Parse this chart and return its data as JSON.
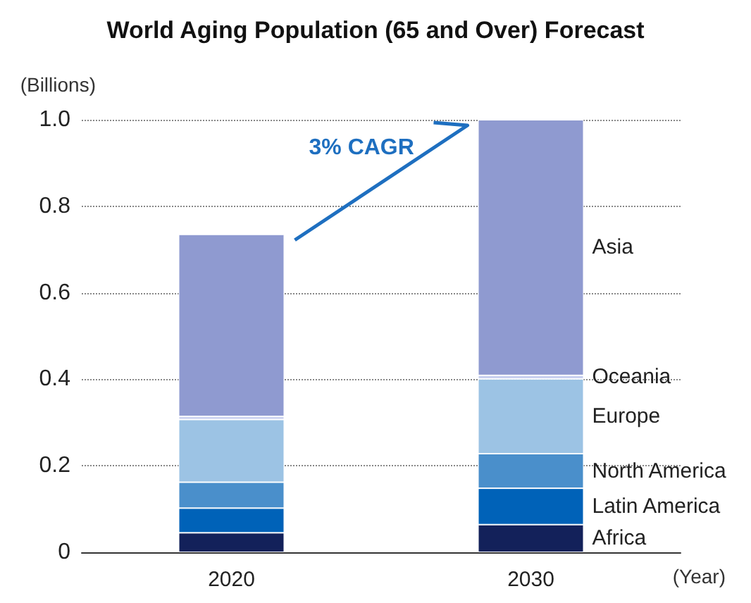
{
  "chart_data": {
    "type": "bar",
    "title": "World Aging Population (65 and Over) Forecast",
    "ylabel": "(Billions)",
    "xlabel": "(Year)",
    "annotations": [
      "3% CAGR"
    ],
    "categories": [
      "2020",
      "2030"
    ],
    "stacked": true,
    "legend": false,
    "grid": "y",
    "ylim": [
      0,
      1.0
    ],
    "yticks": [
      0,
      0.2,
      0.4,
      0.6,
      0.8,
      {
        "value": 1,
        "label": "1.0"
      }
    ],
    "series": [
      {
        "name": "Africa",
        "color": "#13215a",
        "values": [
          0.045,
          0.064
        ]
      },
      {
        "name": "Latin America",
        "color": "#0062b8",
        "values": [
          0.057,
          0.084
        ]
      },
      {
        "name": "North America",
        "color": "#4a8fcb",
        "values": [
          0.06,
          0.08
        ]
      },
      {
        "name": "Europe",
        "color": "#9cc3e4",
        "values": [
          0.145,
          0.173
        ]
      },
      {
        "name": "Oceania",
        "color": "#c5cdee",
        "values": [
          0.007,
          0.008
        ]
      },
      {
        "name": "Asia",
        "color": "#8f9ad0",
        "values": [
          0.421,
          0.591
        ]
      }
    ]
  }
}
